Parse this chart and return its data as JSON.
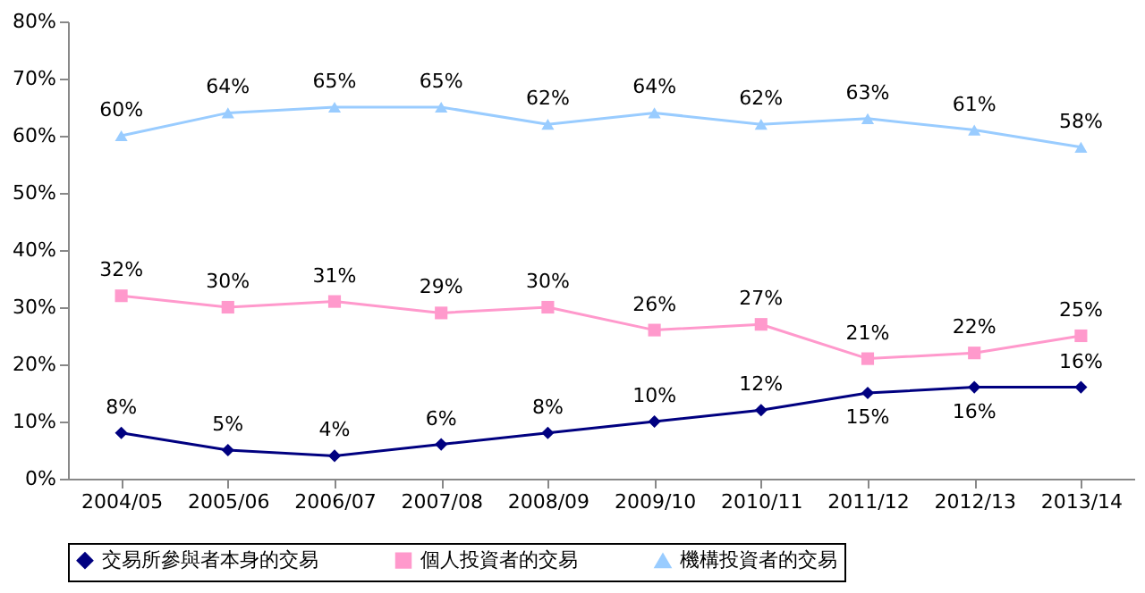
{
  "chart_data": {
    "type": "line",
    "categories": [
      "2004/05",
      "2005/06",
      "2006/07",
      "2007/08",
      "2008/09",
      "2009/10",
      "2010/11",
      "2011/12",
      "2012/13",
      "2013/14"
    ],
    "series": [
      {
        "name": "交易所參與者本身的交易",
        "color": "#000080",
        "marker": "diamond",
        "values": [
          8,
          5,
          4,
          6,
          8,
          10,
          12,
          15,
          16,
          16
        ],
        "value_labels": [
          "8%",
          "5%",
          "4%",
          "6%",
          "8%",
          "10%",
          "12%",
          "15%",
          "16%",
          "16%"
        ]
      },
      {
        "name": "個人投資者的交易",
        "color": "#ff99cc",
        "marker": "square",
        "values": [
          32,
          30,
          31,
          29,
          30,
          26,
          27,
          21,
          22,
          25
        ],
        "value_labels": [
          "32%",
          "30%",
          "31%",
          "29%",
          "30%",
          "26%",
          "27%",
          "21%",
          "22%",
          "25%"
        ]
      },
      {
        "name": "機構投資者的交易",
        "color": "#99ccff",
        "marker": "triangle",
        "values": [
          60,
          64,
          65,
          65,
          62,
          64,
          62,
          63,
          61,
          58
        ],
        "value_labels": [
          "60%",
          "64%",
          "65%",
          "65%",
          "62%",
          "64%",
          "62%",
          "63%",
          "61%",
          "58%"
        ]
      }
    ],
    "ylim": [
      0,
      80
    ],
    "yticks": [
      {
        "value": 0,
        "label": "0%"
      },
      {
        "value": 10,
        "label": "10%"
      },
      {
        "value": 20,
        "label": "20%"
      },
      {
        "value": 30,
        "label": "30%"
      },
      {
        "value": 40,
        "label": "40%"
      },
      {
        "value": 50,
        "label": "50%"
      },
      {
        "value": 60,
        "label": "60%"
      },
      {
        "value": 70,
        "label": "70%"
      },
      {
        "value": 80,
        "label": "80%"
      }
    ],
    "grid": false,
    "legend": "bottom",
    "line_style": "solid"
  }
}
